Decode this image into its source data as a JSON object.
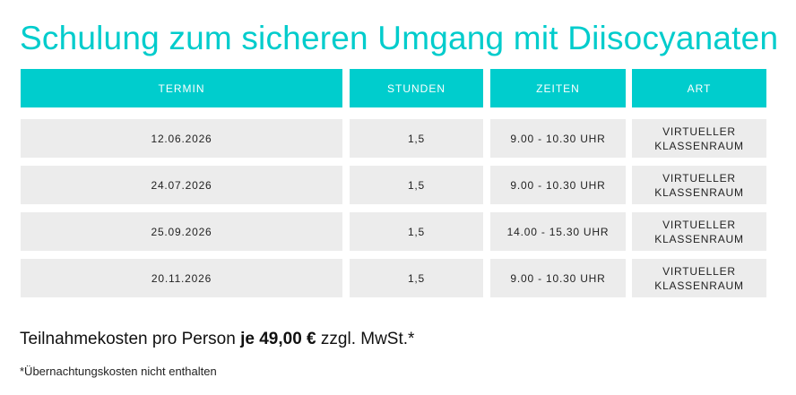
{
  "title": "Schulung zum sicheren Umgang mit Diisocyanaten",
  "table": {
    "headers": [
      "TERMIN",
      "STUNDEN",
      "ZEITEN",
      "ART"
    ],
    "rows": [
      [
        "12.06.2026",
        "1,5",
        "9.00 - 10.30 UHR",
        "VIRTUELLER KLASSENRAUM"
      ],
      [
        "24.07.2026",
        "1,5",
        "9.00 - 10.30 UHR",
        "VIRTUELLER KLASSENRAUM"
      ],
      [
        "25.09.2026",
        "1,5",
        "14.00 - 15.30 UHR",
        "VIRTUELLER KLASSENRAUM"
      ],
      [
        "20.11.2026",
        "1,5",
        "9.00 - 10.30 UHR",
        "VIRTUELLER KLASSENRAUM"
      ]
    ]
  },
  "price": {
    "prefix": "Teilnahmekosten pro Person ",
    "amount": "je 49,00 €",
    "suffix": " zzgl. MwSt.*"
  },
  "footnote": "*Übernachtungskosten nicht enthalten",
  "colors": {
    "accent": "#00cdcd",
    "row_bg": "#ececec"
  }
}
